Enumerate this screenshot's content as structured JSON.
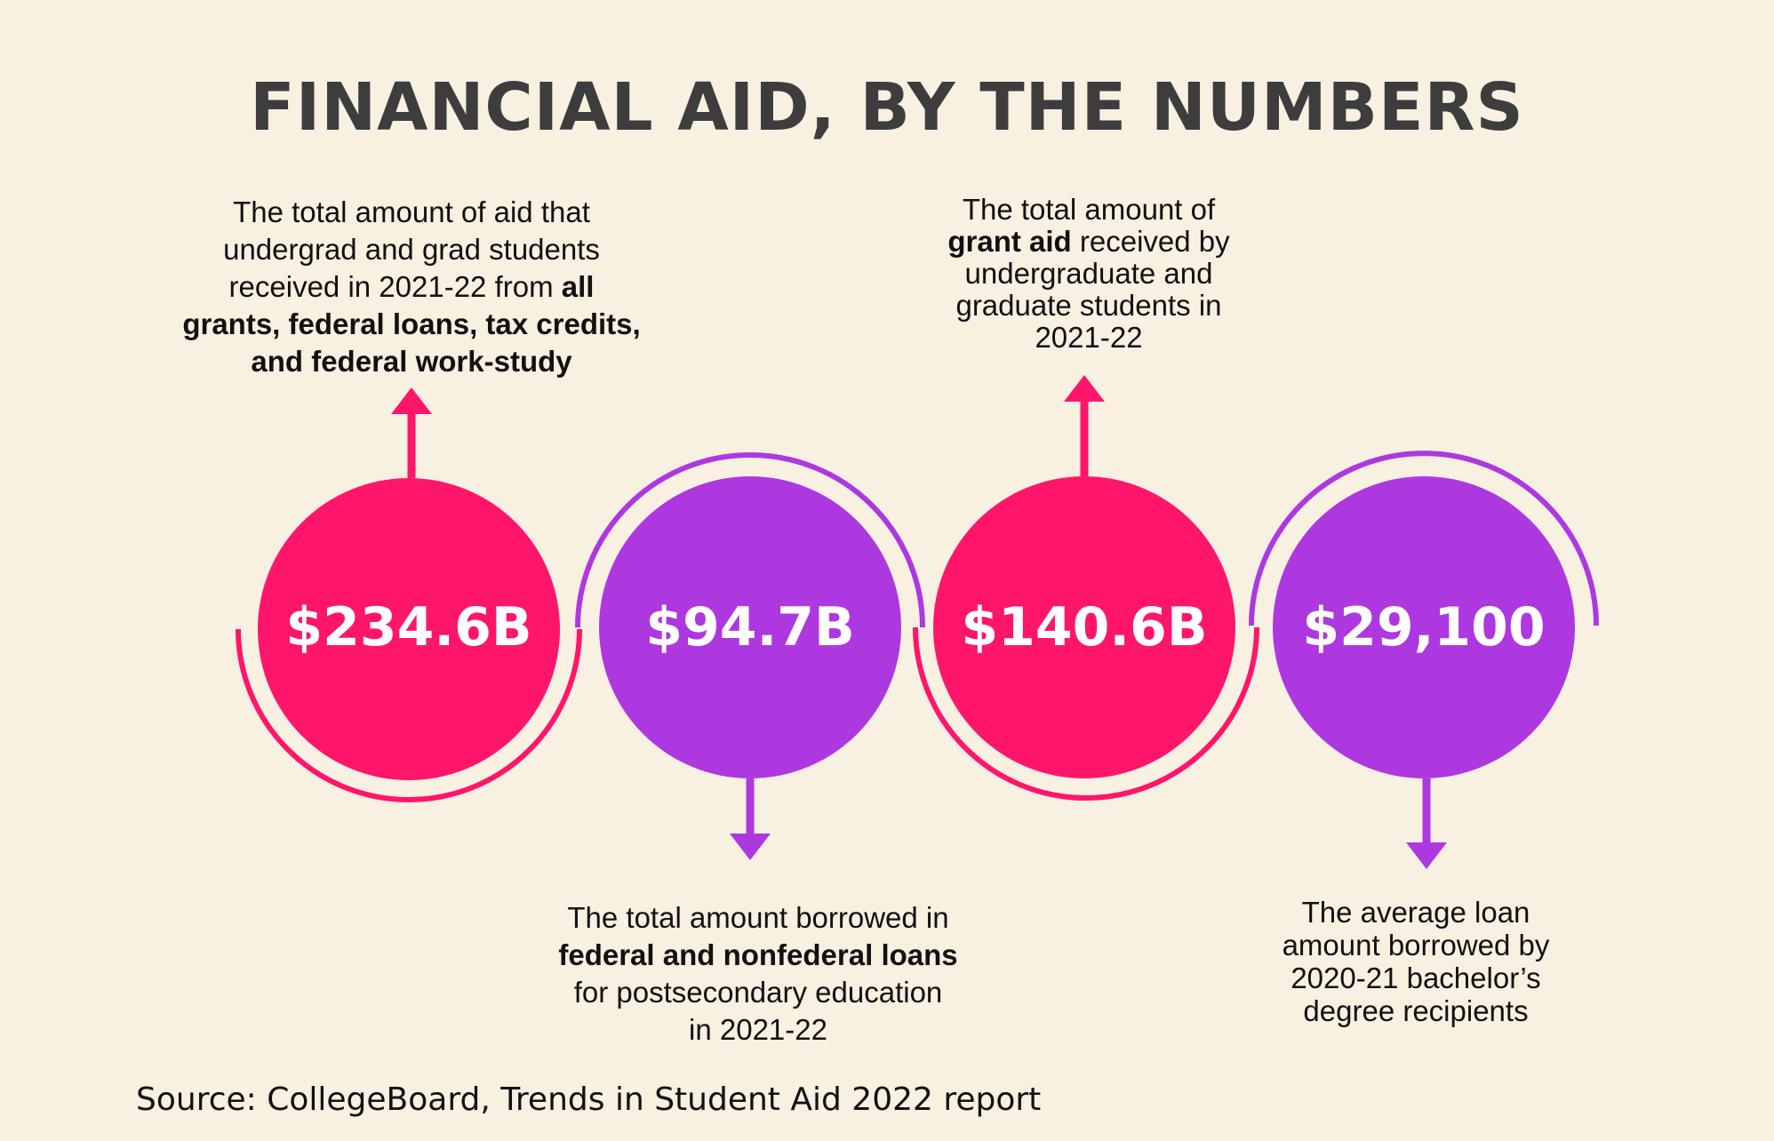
{
  "title": "FINANCIAL AID, BY THE NUMBERS",
  "colors": {
    "background": "#f8f0e1",
    "pink": "#ff1569",
    "purple": "#ae38e0",
    "title": "#3d3d3d"
  },
  "stats": [
    {
      "value": "$234.6B",
      "color": "pink",
      "description": {
        "line1": "The total amount of aid that",
        "line2": "undergrad and grad students",
        "line3_plain": "received in 2021-22 from ",
        "line3_bold": "all",
        "line4_bold": "grants, federal loans, tax credits,",
        "line5_bold": "and federal work-study"
      }
    },
    {
      "value": "$94.7B",
      "color": "purple",
      "description": {
        "line1": "The total amount borrowed in",
        "line2_bold": "federal and nonfederal loans",
        "line3": "for postsecondary education",
        "line4": "in 2021-22"
      }
    },
    {
      "value": "$140.6B",
      "color": "pink",
      "description": {
        "line1": "The total amount of",
        "line2_bold": "grant aid",
        "line2_plain": " received by",
        "line3": "undergraduate and",
        "line4": "graduate students in",
        "line5": "2021-22"
      }
    },
    {
      "value": "$29,100",
      "color": "purple",
      "description": {
        "line1": "The average loan",
        "line2": "amount borrowed by",
        "line3": "2020-21 bachelor’s",
        "line4": "degree recipients"
      }
    }
  ],
  "source": "Source: CollegeBoard, Trends in Student Aid 2022 report"
}
